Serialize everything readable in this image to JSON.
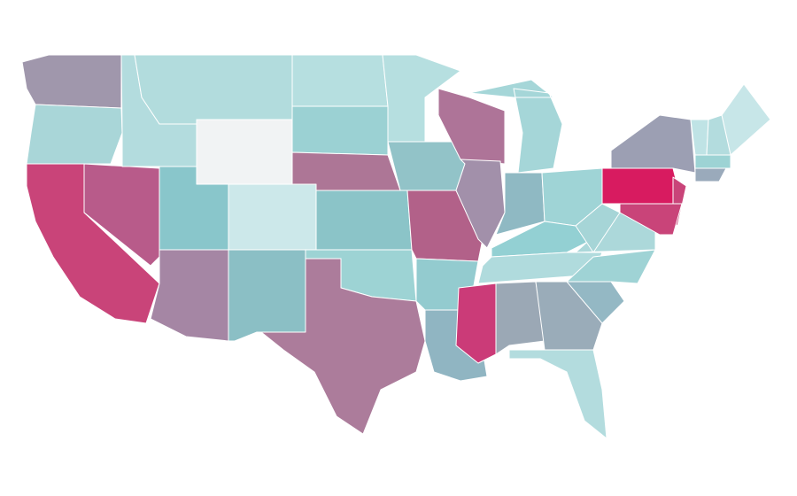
{
  "map": {
    "fills": [
      "#a097ac",
      "#a9d6d8",
      "#c94479",
      "#b85b8a",
      "#b3dcde",
      "#b2dcdd",
      "#f1f3f4",
      "#89c6cb",
      "#a586a4",
      "#cce8ea",
      "#8bbfc5",
      "#b6dfe0",
      "#9bd1d3",
      "#ad7696",
      "#8bc4c8",
      "#9dd3d4",
      "#ac7c9b",
      "#b6dfe0",
      "#92c3c8",
      "#b26189",
      "#93cbcf",
      "#90b5c2",
      "#ae7498",
      "#a290aa",
      "#a5d6d8",
      "#8fb9c3",
      "#9fd4d6",
      "#93d0d3",
      "#b0dbdd",
      "#cb3b78",
      "#9ba8b5",
      "#9aacb9",
      "#b3dcde",
      "#94b8c4",
      "#9fd3d5",
      "#acd8da",
      "#a6d5d7",
      "#d81b60",
      "#9c9fb3",
      "#c94479",
      "#c94479",
      "#c7e6e8",
      "#bfe3e5",
      "#b3dcde",
      "#9dd3d4",
      "#9aaabb"
    ]
  }
}
